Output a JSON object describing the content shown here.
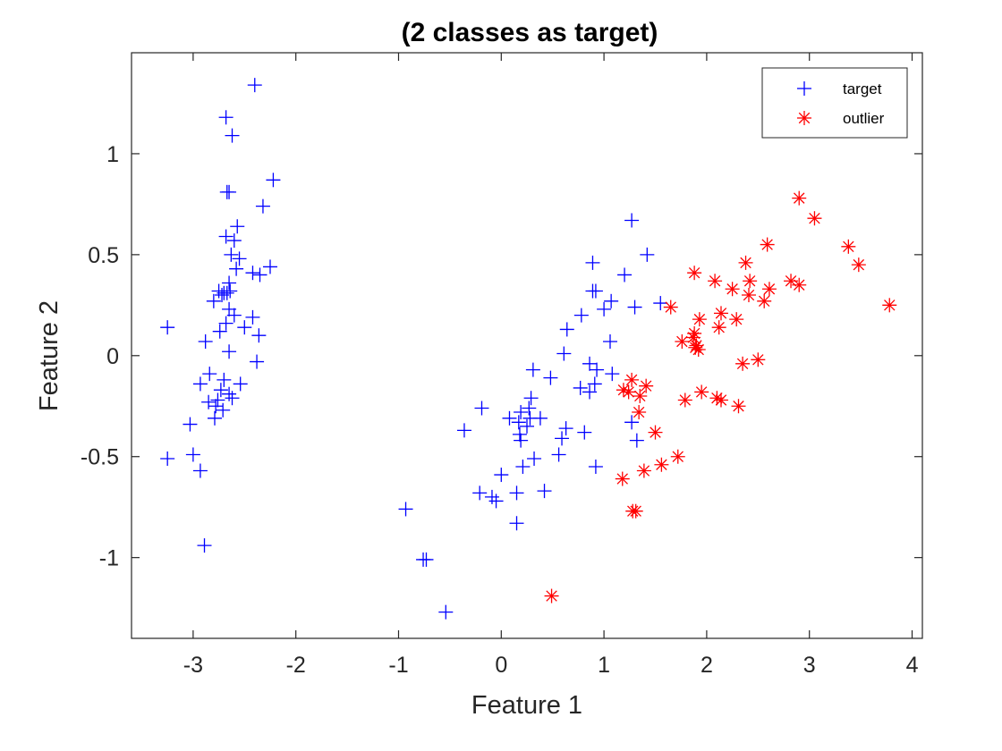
{
  "chart_data": {
    "type": "scatter",
    "title": "(2 classes as target)",
    "xlabel": "Feature 1",
    "ylabel": "Feature 2",
    "xlim": [
      -3.6,
      4.1
    ],
    "ylim": [
      -1.4,
      1.5
    ],
    "xticks": [
      -3,
      -2,
      -1,
      0,
      1,
      2,
      3,
      4
    ],
    "xtick_labels": [
      "-3",
      "-2",
      "-1",
      "0",
      "1",
      "2",
      "3",
      "4"
    ],
    "yticks": [
      -1,
      -0.5,
      0,
      0.5,
      1
    ],
    "ytick_labels": [
      "-1",
      "-0.5",
      "0",
      "0.5",
      "1"
    ],
    "grid": false,
    "legend": {
      "placement": "top-right",
      "entries": [
        {
          "label": "target",
          "marker": "plus",
          "color": "#0000ff"
        },
        {
          "label": "outlier",
          "marker": "asterisk",
          "color": "#ff0000"
        }
      ]
    },
    "series": [
      {
        "name": "target",
        "marker": "plus",
        "color": "#0000ff",
        "points": [
          [
            -2.4,
            1.34
          ],
          [
            -2.68,
            1.18
          ],
          [
            -2.62,
            1.09
          ],
          [
            -2.67,
            0.81
          ],
          [
            -2.65,
            0.81
          ],
          [
            -2.22,
            0.87
          ],
          [
            -2.32,
            0.74
          ],
          [
            -2.57,
            0.64
          ],
          [
            -2.68,
            0.59
          ],
          [
            -2.6,
            0.57
          ],
          [
            -2.63,
            0.5
          ],
          [
            -2.55,
            0.48
          ],
          [
            -2.58,
            0.43
          ],
          [
            -2.42,
            0.41
          ],
          [
            -2.35,
            0.4
          ],
          [
            -2.25,
            0.44
          ],
          [
            -2.65,
            0.36
          ],
          [
            -2.75,
            0.32
          ],
          [
            -2.7,
            0.31
          ],
          [
            -2.67,
            0.31
          ],
          [
            -2.64,
            0.32
          ],
          [
            -2.72,
            0.3
          ],
          [
            -2.8,
            0.27
          ],
          [
            -2.65,
            0.23
          ],
          [
            -2.6,
            0.2
          ],
          [
            -2.42,
            0.19
          ],
          [
            -2.5,
            0.14
          ],
          [
            -2.68,
            0.16
          ],
          [
            -2.74,
            0.12
          ],
          [
            -2.36,
            0.1
          ],
          [
            -3.25,
            0.14
          ],
          [
            -2.88,
            0.07
          ],
          [
            -2.65,
            0.02
          ],
          [
            -2.38,
            -0.03
          ],
          [
            -2.84,
            -0.09
          ],
          [
            -2.7,
            -0.12
          ],
          [
            -2.93,
            -0.14
          ],
          [
            -2.54,
            -0.14
          ],
          [
            -2.73,
            -0.17
          ],
          [
            -2.65,
            -0.19
          ],
          [
            -2.62,
            -0.21
          ],
          [
            -2.76,
            -0.22
          ],
          [
            -2.85,
            -0.23
          ],
          [
            -2.78,
            -0.25
          ],
          [
            -2.71,
            -0.27
          ],
          [
            -2.79,
            -0.31
          ],
          [
            -3.03,
            -0.34
          ],
          [
            -3.25,
            -0.51
          ],
          [
            -3.0,
            -0.49
          ],
          [
            -2.93,
            -0.57
          ],
          [
            -2.89,
            -0.94
          ],
          [
            1.27,
            0.67
          ],
          [
            1.42,
            0.5
          ],
          [
            0.89,
            0.46
          ],
          [
            1.2,
            0.4
          ],
          [
            0.89,
            0.32
          ],
          [
            0.92,
            0.32
          ],
          [
            1.07,
            0.27
          ],
          [
            1.55,
            0.26
          ],
          [
            1.3,
            0.24
          ],
          [
            1.0,
            0.23
          ],
          [
            0.78,
            0.2
          ],
          [
            0.64,
            0.13
          ],
          [
            1.06,
            0.07
          ],
          [
            0.61,
            0.01
          ],
          [
            0.86,
            -0.04
          ],
          [
            0.93,
            -0.07
          ],
          [
            1.08,
            -0.09
          ],
          [
            0.31,
            -0.07
          ],
          [
            0.48,
            -0.11
          ],
          [
            0.91,
            -0.14
          ],
          [
            0.77,
            -0.16
          ],
          [
            0.86,
            -0.18
          ],
          [
            0.29,
            -0.21
          ],
          [
            -0.19,
            -0.26
          ],
          [
            0.27,
            -0.26
          ],
          [
            0.19,
            -0.28
          ],
          [
            0.28,
            -0.31
          ],
          [
            0.38,
            -0.31
          ],
          [
            0.08,
            -0.31
          ],
          [
            0.17,
            -0.33
          ],
          [
            0.25,
            -0.35
          ],
          [
            0.63,
            -0.36
          ],
          [
            0.18,
            -0.39
          ],
          [
            0.81,
            -0.38
          ],
          [
            0.59,
            -0.41
          ],
          [
            0.19,
            -0.42
          ],
          [
            1.32,
            -0.42
          ],
          [
            -0.36,
            -0.37
          ],
          [
            0.32,
            -0.51
          ],
          [
            0.56,
            -0.49
          ],
          [
            0.21,
            -0.55
          ],
          [
            0.92,
            -0.55
          ],
          [
            0.0,
            -0.59
          ],
          [
            0.42,
            -0.67
          ],
          [
            -0.21,
            -0.68
          ],
          [
            -0.09,
            -0.7
          ],
          [
            0.15,
            -0.68
          ],
          [
            -0.05,
            -0.72
          ],
          [
            0.15,
            -0.83
          ],
          [
            -0.93,
            -0.76
          ],
          [
            -0.76,
            -1.01
          ],
          [
            -0.73,
            -1.01
          ],
          [
            -0.54,
            -1.27
          ],
          [
            1.27,
            -0.33
          ]
        ]
      },
      {
        "name": "outlier",
        "marker": "asterisk",
        "color": "#ff0000",
        "points": [
          [
            2.9,
            0.78
          ],
          [
            3.05,
            0.68
          ],
          [
            2.59,
            0.55
          ],
          [
            3.38,
            0.54
          ],
          [
            3.48,
            0.45
          ],
          [
            2.38,
            0.46
          ],
          [
            1.88,
            0.41
          ],
          [
            2.42,
            0.37
          ],
          [
            2.08,
            0.37
          ],
          [
            2.82,
            0.37
          ],
          [
            2.9,
            0.35
          ],
          [
            2.25,
            0.33
          ],
          [
            2.61,
            0.33
          ],
          [
            2.41,
            0.3
          ],
          [
            2.56,
            0.27
          ],
          [
            3.78,
            0.25
          ],
          [
            1.65,
            0.24
          ],
          [
            2.14,
            0.21
          ],
          [
            1.93,
            0.18
          ],
          [
            2.29,
            0.18
          ],
          [
            2.12,
            0.14
          ],
          [
            1.88,
            0.11
          ],
          [
            1.87,
            0.09
          ],
          [
            1.76,
            0.07
          ],
          [
            1.9,
            0.05
          ],
          [
            1.92,
            0.03
          ],
          [
            1.89,
            0.04
          ],
          [
            2.5,
            -0.02
          ],
          [
            2.35,
            -0.04
          ],
          [
            1.27,
            -0.12
          ],
          [
            1.41,
            -0.15
          ],
          [
            1.19,
            -0.17
          ],
          [
            1.24,
            -0.18
          ],
          [
            1.95,
            -0.18
          ],
          [
            1.35,
            -0.2
          ],
          [
            1.79,
            -0.22
          ],
          [
            2.1,
            -0.21
          ],
          [
            2.14,
            -0.22
          ],
          [
            2.31,
            -0.25
          ],
          [
            1.34,
            -0.28
          ],
          [
            1.5,
            -0.38
          ],
          [
            1.72,
            -0.5
          ],
          [
            1.56,
            -0.54
          ],
          [
            1.39,
            -0.57
          ],
          [
            1.18,
            -0.61
          ],
          [
            1.28,
            -0.77
          ],
          [
            1.31,
            -0.77
          ],
          [
            0.49,
            -1.19
          ]
        ]
      }
    ]
  }
}
